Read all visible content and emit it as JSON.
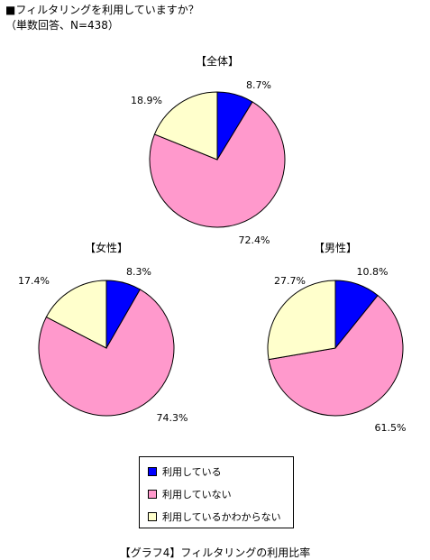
{
  "header": {
    "question": "■フィルタリングを利用していますか？",
    "note": "（単数回答、N=438）"
  },
  "legend": {
    "items": [
      {
        "label": "利用している",
        "color": "#0000ff"
      },
      {
        "label": "利用していない",
        "color": "#ff99cc"
      },
      {
        "label": "利用しているかわからない",
        "color": "#ffffcc"
      }
    ]
  },
  "caption": "【グラフ4】フィルタリングの利用比率",
  "chart_data": [
    {
      "type": "pie",
      "title": "【全体】",
      "categories": [
        "利用している",
        "利用していない",
        "利用しているかわからない"
      ],
      "values": [
        8.7,
        72.4,
        18.9
      ],
      "labels": [
        "8.7%",
        "72.4%",
        "18.9%"
      ],
      "colors": [
        "#0000ff",
        "#ff99cc",
        "#ffffcc"
      ]
    },
    {
      "type": "pie",
      "title": "【女性】",
      "categories": [
        "利用している",
        "利用していない",
        "利用しているかわからない"
      ],
      "values": [
        8.3,
        74.3,
        17.4
      ],
      "labels": [
        "8.3%",
        "74.3%",
        "17.4%"
      ],
      "colors": [
        "#0000ff",
        "#ff99cc",
        "#ffffcc"
      ]
    },
    {
      "type": "pie",
      "title": "【男性】",
      "categories": [
        "利用している",
        "利用していない",
        "利用しているかわからない"
      ],
      "values": [
        10.8,
        61.5,
        27.7
      ],
      "labels": [
        "10.8%",
        "61.5%",
        "27.7%"
      ],
      "colors": [
        "#0000ff",
        "#ff99cc",
        "#ffffcc"
      ]
    }
  ]
}
